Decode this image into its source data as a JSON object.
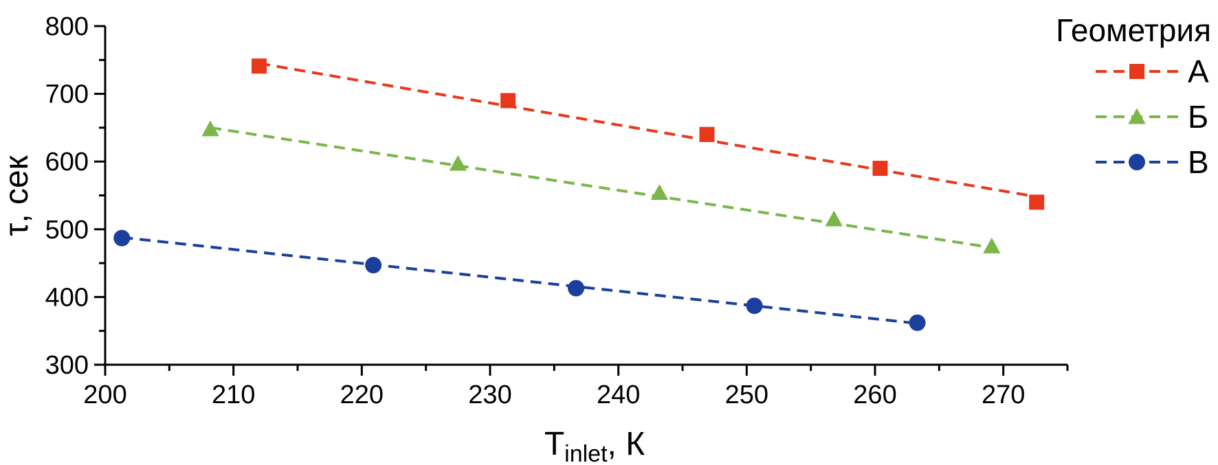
{
  "chart_data": {
    "type": "line",
    "title": "",
    "xlabel_main": "T",
    "xlabel_sub": "inlet",
    "xlabel_unit": ", К",
    "ylabel": "τ, сек",
    "xlim": [
      200,
      275
    ],
    "ylim": [
      300,
      800
    ],
    "xticks": [
      200,
      210,
      220,
      230,
      240,
      250,
      260,
      270
    ],
    "yticks": [
      300,
      400,
      500,
      600,
      700,
      800
    ],
    "grid": false,
    "legend": {
      "title": "Геометрия",
      "placement": "top-right"
    },
    "series": [
      {
        "name": "А",
        "color": "#e8381b",
        "marker": "square",
        "x": [
          212.0,
          231.4,
          246.9,
          260.4,
          272.6
        ],
        "y": [
          741,
          690,
          640,
          590,
          540
        ],
        "fit_x": [
          212.0,
          272.6
        ],
        "fit_y": [
          745,
          548
        ]
      },
      {
        "name": "Б",
        "color": "#7ab648",
        "marker": "triangle",
        "x": [
          208.2,
          227.5,
          243.2,
          256.8,
          269.1
        ],
        "y": [
          648,
          597,
          554,
          515,
          475
        ],
        "fit_x": [
          208.2,
          269.1
        ],
        "fit_y": [
          650,
          473
        ]
      },
      {
        "name": "В",
        "color": "#1a3f9c",
        "marker": "circle",
        "x": [
          201.3,
          220.9,
          236.7,
          250.6,
          263.3
        ],
        "y": [
          487,
          447,
          413,
          387,
          362
        ],
        "fit_x": [
          201.3,
          263.3
        ],
        "fit_y": [
          488,
          361
        ]
      }
    ]
  }
}
